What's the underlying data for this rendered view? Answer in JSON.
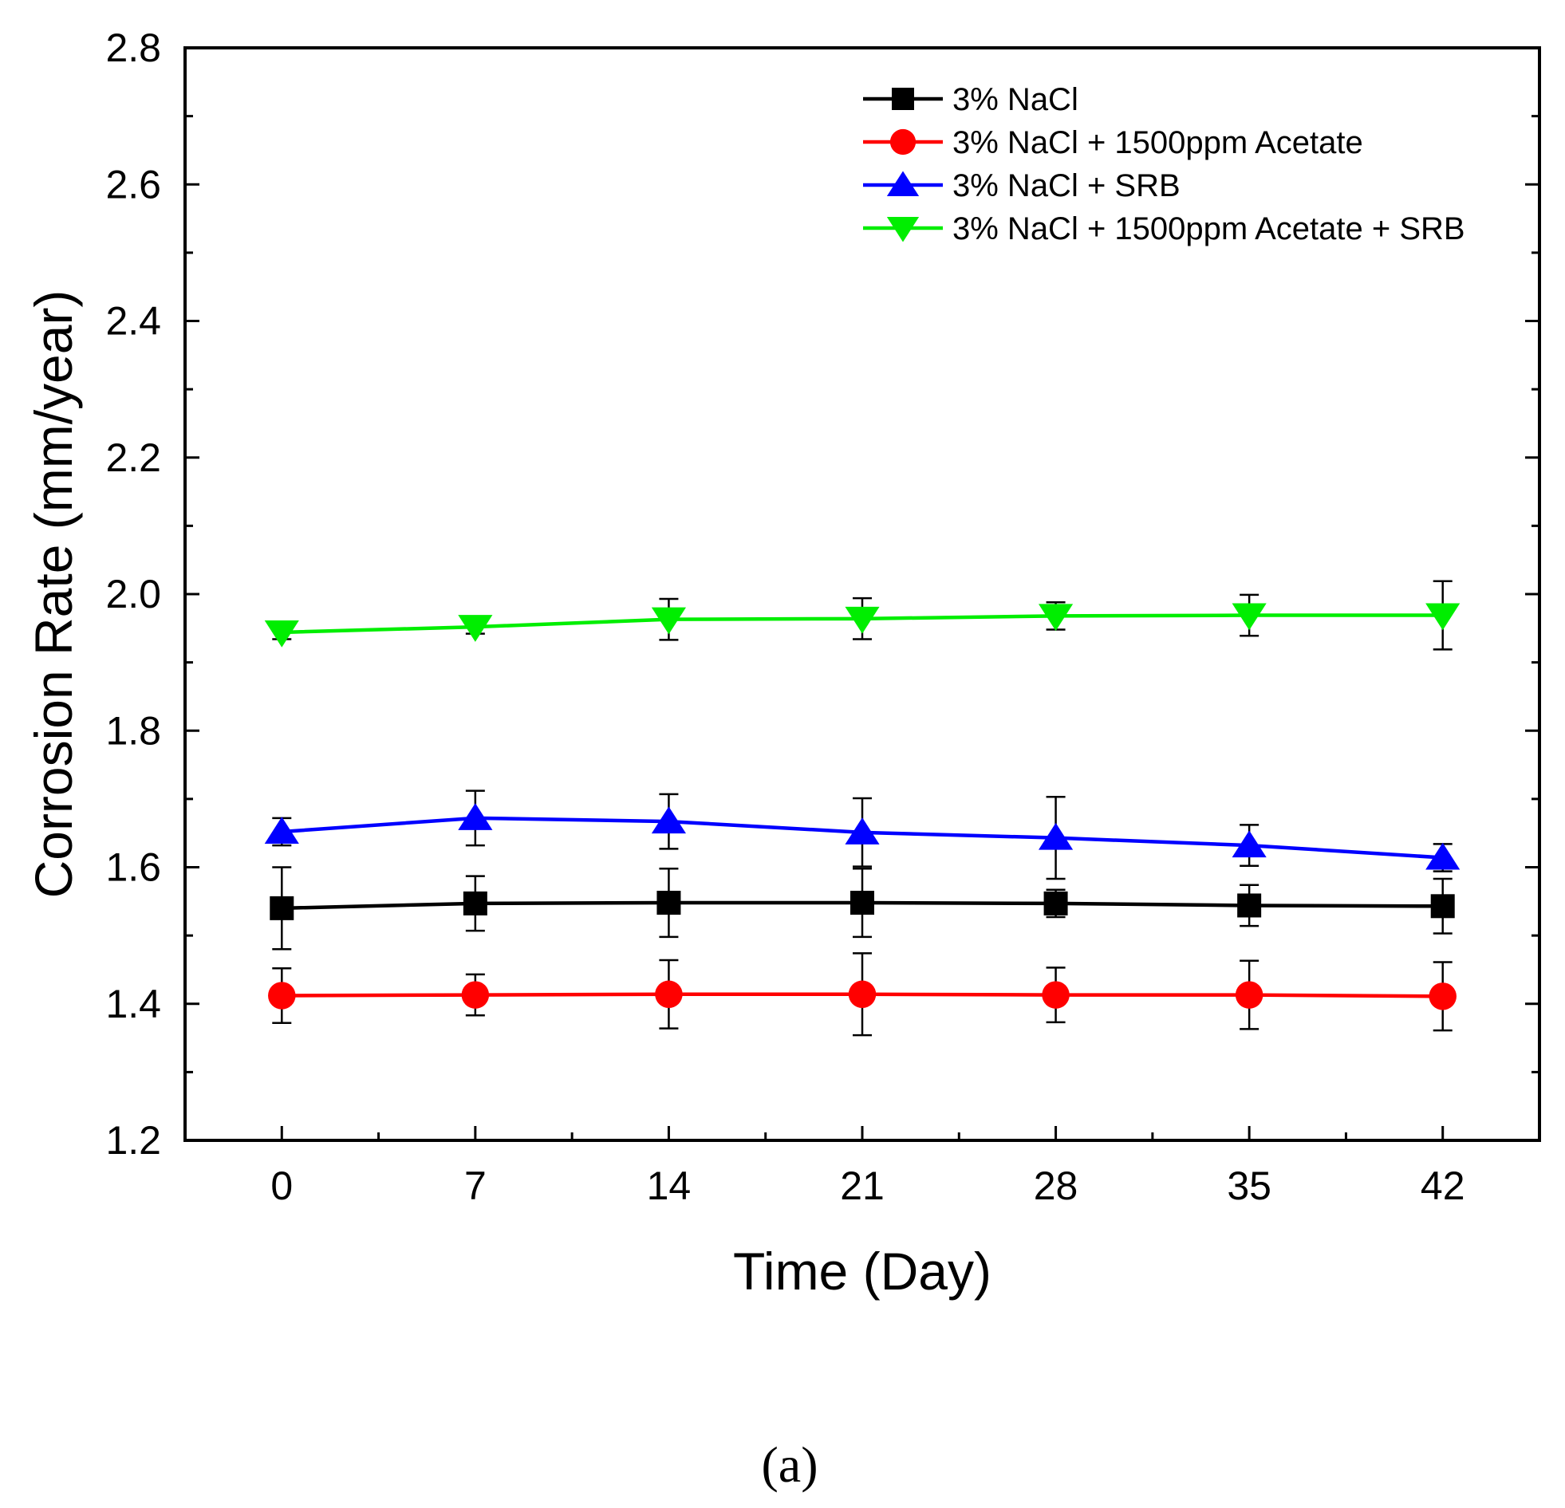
{
  "chart_data": {
    "type": "line",
    "title": "",
    "xlabel": "Time (Day)",
    "ylabel": "Corrosion Rate (mm/year)",
    "x": [
      0,
      7,
      14,
      21,
      28,
      35,
      42
    ],
    "xlim": [
      -3.5,
      45.5
    ],
    "ylim": [
      1.2,
      2.8
    ],
    "x_ticks": [
      "0",
      "7",
      "14",
      "21",
      "28",
      "35",
      "42"
    ],
    "y_ticks": [
      "1.2",
      "1.4",
      "1.6",
      "1.8",
      "2.0",
      "2.2",
      "2.4",
      "2.6",
      "2.8"
    ],
    "grid": false,
    "legend_position": "top-right",
    "series": [
      {
        "name": "3% NaCl",
        "color": "#000000",
        "marker": "square",
        "values": [
          1.54,
          1.547,
          1.548,
          1.548,
          1.547,
          1.544,
          1.543
        ],
        "errors": [
          0.06,
          0.04,
          0.05,
          0.05,
          0.02,
          0.03,
          0.04
        ]
      },
      {
        "name": "3% NaCl + 1500ppm Acetate",
        "color": "#ff0000",
        "marker": "circle",
        "values": [
          1.412,
          1.413,
          1.414,
          1.414,
          1.413,
          1.413,
          1.411
        ],
        "errors": [
          0.04,
          0.03,
          0.05,
          0.06,
          0.04,
          0.05,
          0.05
        ]
      },
      {
        "name": "3% NaCl + SRB",
        "color": "#0000ff",
        "marker": "triangle-up",
        "values": [
          1.652,
          1.672,
          1.667,
          1.651,
          1.643,
          1.632,
          1.614
        ],
        "errors": [
          0.02,
          0.04,
          0.04,
          0.05,
          0.06,
          0.03,
          0.02
        ]
      },
      {
        "name": "3% NaCl + 1500ppm Acetate + SRB",
        "color": "#00ee00",
        "marker": "triangle-down",
        "values": [
          1.944,
          1.952,
          1.963,
          1.964,
          1.968,
          1.969,
          1.969
        ],
        "errors": [
          0.01,
          0.01,
          0.03,
          0.03,
          0.02,
          0.03,
          0.05
        ]
      }
    ]
  },
  "caption": "(a)"
}
